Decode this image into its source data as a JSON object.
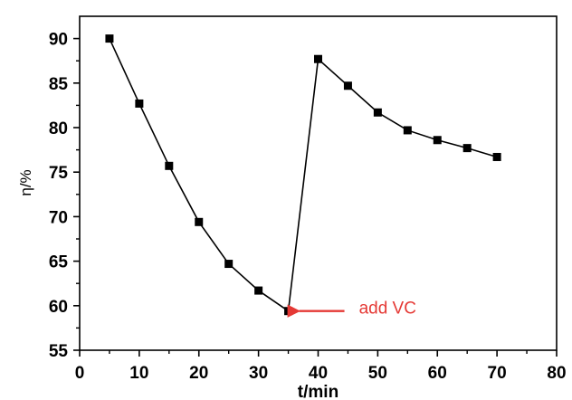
{
  "chart_data": {
    "type": "line",
    "title": "",
    "xlabel": "t/min",
    "ylabel": "η/%",
    "xlim": [
      0,
      80
    ],
    "ylim": [
      55,
      92.5
    ],
    "xticks": [
      0,
      10,
      20,
      30,
      40,
      50,
      60,
      70,
      80
    ],
    "yticks": [
      55,
      60,
      65,
      70,
      75,
      80,
      85,
      90
    ],
    "grid": false,
    "legend": "none",
    "series": [
      {
        "marker": "square",
        "color": "#000000",
        "x": [
          5,
          10,
          15,
          20,
          25,
          30,
          35,
          40,
          45,
          50,
          55,
          60,
          65,
          70
        ],
        "y": [
          90.0,
          82.7,
          75.7,
          69.4,
          64.7,
          61.7,
          59.4,
          87.7,
          84.7,
          81.7,
          79.7,
          78.6,
          77.7,
          76.7
        ]
      }
    ],
    "annotations": [
      {
        "text": "add VC",
        "color": "#e53935",
        "points_to": {
          "x": 35,
          "y": 59.4
        }
      }
    ]
  }
}
